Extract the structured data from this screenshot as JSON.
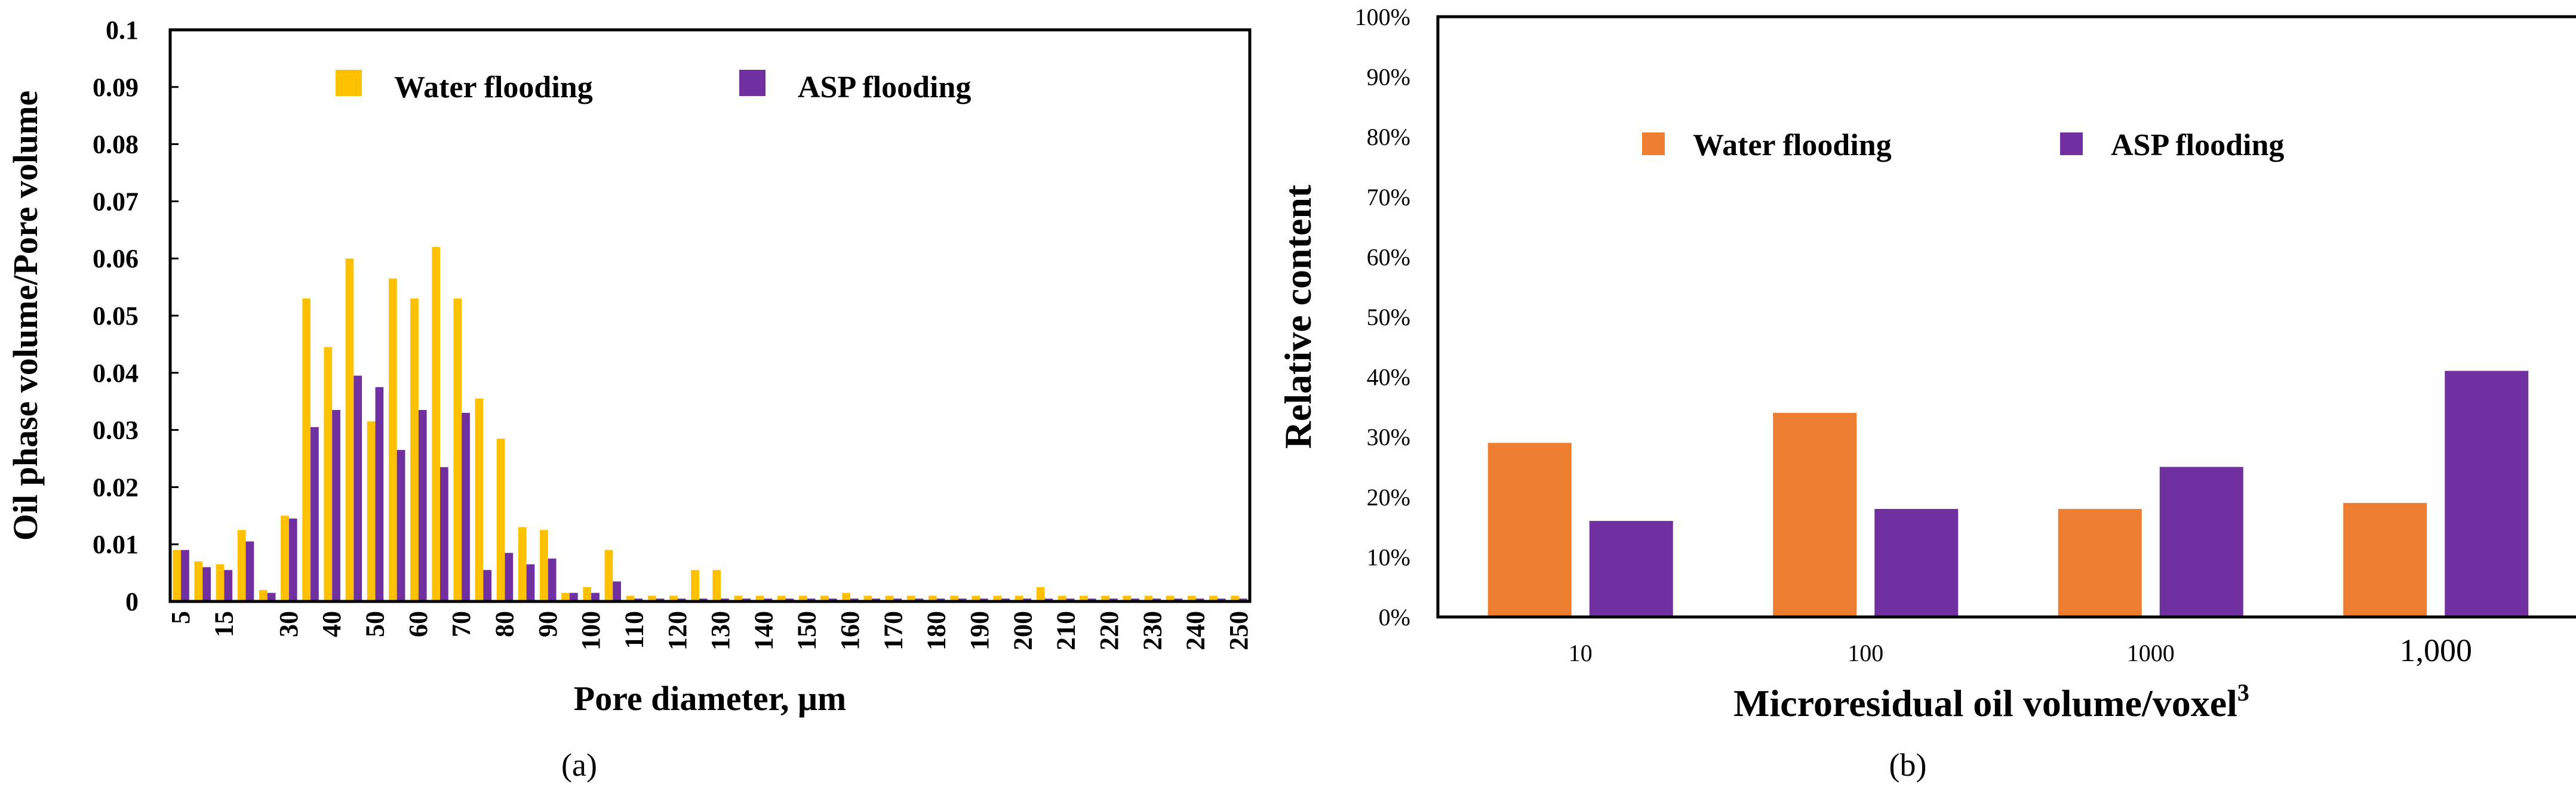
{
  "captions": {
    "a": "(a)",
    "b": "(b)"
  },
  "chart_data": [
    {
      "type": "bar",
      "panel": "a",
      "xlabel": "Pore diameter, μm",
      "ylabel": "Oil phase volume/Pore volume",
      "ylim": [
        0,
        0.1
      ],
      "yticks": [
        "0",
        "0.01",
        "0.02",
        "0.03",
        "0.04",
        "0.05",
        "0.06",
        "0.07",
        "0.08",
        "0.09",
        "0.1"
      ],
      "legend": {
        "position": "top",
        "items": [
          "Water flooding",
          "ASP flooding"
        ]
      },
      "categories": [
        "5",
        "10",
        "15",
        "20",
        "25",
        "30",
        "35",
        "40",
        "45",
        "50",
        "55",
        "60",
        "65",
        "70",
        "75",
        "80",
        "85",
        "90",
        "95",
        "100",
        "105",
        "110",
        "115",
        "120",
        "125",
        "130",
        "135",
        "140",
        "145",
        "150",
        "155",
        "160",
        "165",
        "170",
        "175",
        "180",
        "185",
        "190",
        "195",
        "200",
        "205",
        "210",
        "215",
        "220",
        "225",
        "230",
        "235",
        "240",
        "245",
        "250"
      ],
      "tick_labels": [
        "5",
        "15",
        "30",
        "40",
        "50",
        "60",
        "70",
        "80",
        "90",
        "100",
        "110",
        "120",
        "130",
        "140",
        "150",
        "160",
        "170",
        "180",
        "190",
        "200",
        "210",
        "220",
        "230",
        "240",
        "250"
      ],
      "series": [
        {
          "name": "Water flooding",
          "color": "#FFC000",
          "values": [
            0.009,
            0.007,
            0.0065,
            0.0125,
            0.002,
            0.015,
            0.053,
            0.0445,
            0.06,
            0.0315,
            0.0565,
            0.053,
            0.062,
            0.053,
            0.0355,
            0.0285,
            0.013,
            0.0125,
            0.0015,
            0.0025,
            0.009,
            0.001,
            0.001,
            0.001,
            0.0055,
            0.0055,
            0.001,
            0.001,
            0.001,
            0.001,
            0.001,
            0.0015,
            0.001,
            0.001,
            0.001,
            0.001,
            0.001,
            0.001,
            0.001,
            0.001,
            0.0025,
            0.001,
            0.001,
            0.001,
            0.001,
            0.001,
            0.001,
            0.001,
            0.001,
            0.001
          ]
        },
        {
          "name": "ASP flooding",
          "color": "#7030A0",
          "values": [
            0.009,
            0.006,
            0.0055,
            0.0105,
            0.0015,
            0.0145,
            0.0305,
            0.0335,
            0.0395,
            0.0375,
            0.0265,
            0.0335,
            0.0235,
            0.033,
            0.0055,
            0.0085,
            0.0065,
            0.0075,
            0.0015,
            0.0015,
            0.0035,
            0.0005,
            0.0005,
            0.0005,
            0.0005,
            0.0005,
            0.0005,
            0.0005,
            0.0005,
            0.0005,
            0.0005,
            0.0005,
            0.0005,
            0.0005,
            0.0005,
            0.0005,
            0.0005,
            0.0005,
            0.0005,
            0.0005,
            0.0005,
            0.0005,
            0.0005,
            0.0005,
            0.0005,
            0.0005,
            0.0005,
            0.0005,
            0.0005,
            0.0005
          ]
        }
      ]
    },
    {
      "type": "bar",
      "panel": "b",
      "xlabel": "Microresidual oil volume/voxel",
      "xlabel_sup": "3",
      "ylabel": "Relative content",
      "ylim": [
        0,
        100
      ],
      "yticks": [
        "0%",
        "10%",
        "20%",
        "30%",
        "40%",
        "50%",
        "60%",
        "70%",
        "80%",
        "90%",
        "100%"
      ],
      "legend": {
        "position": "upper-center",
        "items": [
          "Water flooding",
          "ASP flooding"
        ]
      },
      "categories": [
        "10",
        "100",
        "1000",
        "1,000"
      ],
      "series": [
        {
          "name": "Water flooding",
          "color": "#ED7D31",
          "values": [
            29,
            34,
            18,
            19
          ]
        },
        {
          "name": "ASP flooding",
          "color": "#7030A0",
          "values": [
            16,
            18,
            25,
            41
          ]
        }
      ]
    }
  ]
}
